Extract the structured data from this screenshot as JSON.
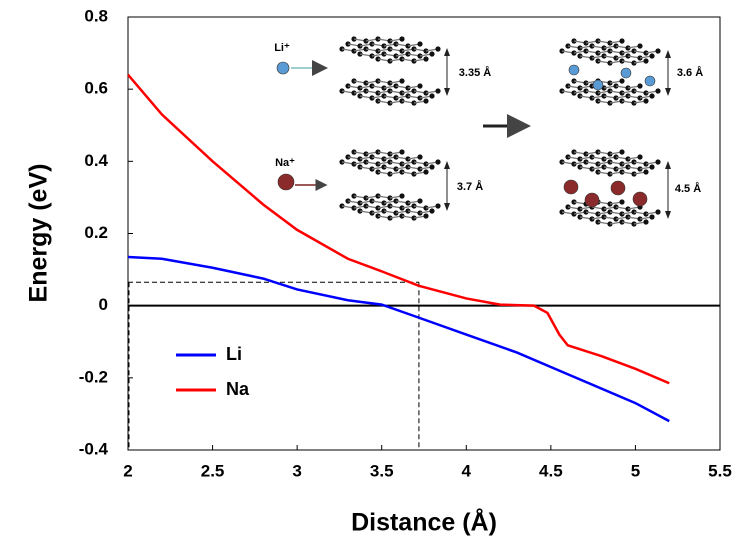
{
  "chart_data": {
    "type": "line",
    "x_label": "Distance (Å)",
    "y_label": "Energy (eV)",
    "series": [
      {
        "name": "Li",
        "color": "#0000ff",
        "x": [
          2,
          2.2,
          2.5,
          2.8,
          3.0,
          3.3,
          3.5,
          3.7,
          4.0,
          4.3,
          4.6,
          5.0,
          5.2
        ],
        "values": [
          0.135,
          0.13,
          0.105,
          0.075,
          0.045,
          0.015,
          0.003,
          -0.03,
          -0.08,
          -0.13,
          -0.19,
          -0.27,
          -0.32
        ]
      },
      {
        "name": "Na",
        "color": "#ff0000",
        "x": [
          2,
          2.2,
          2.5,
          2.8,
          3.0,
          3.3,
          3.5,
          3.72,
          4.0,
          4.2,
          4.4,
          4.48,
          4.55,
          4.6,
          4.8,
          5.0,
          5.2
        ],
        "values": [
          0.64,
          0.53,
          0.4,
          0.28,
          0.21,
          0.13,
          0.095,
          0.055,
          0.02,
          0.003,
          0,
          -0.02,
          -0.08,
          -0.11,
          -0.14,
          -0.175,
          -0.215
        ]
      }
    ],
    "reference_lines": [
      {
        "x": 3.72,
        "y": 0.065
      }
    ],
    "xlim": [
      2,
      5.5
    ],
    "ylim": [
      -0.4,
      0.8
    ],
    "xticks": [
      2,
      2.5,
      3,
      3.5,
      4,
      4.5,
      5,
      5.5
    ],
    "yticks": [
      -0.4,
      -0.2,
      0,
      0.2,
      0.4,
      0.6,
      0.8
    ],
    "annotations": [
      "Li⁺",
      "Na⁺",
      "3.35 Å",
      "3.6 Å",
      "3.7 Å",
      "4.5 Å"
    ]
  }
}
